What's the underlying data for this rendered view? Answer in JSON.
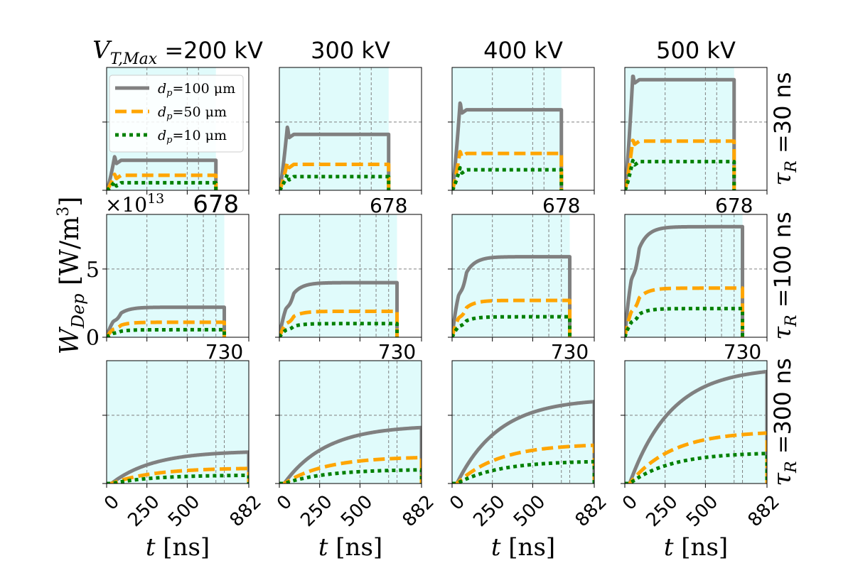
{
  "chart_data": {
    "type": "line",
    "layout": "3x4 grid of line subplots",
    "column_headers": [
      "200 kV",
      "300 kV",
      "400 kV",
      "500 kV"
    ],
    "column_header_prefix": "V",
    "column_header_prefix_sub": "T,Max",
    "column_header_prefix_sep": " =",
    "row_headers": [
      "30 ns",
      "100 ns",
      "300 ns"
    ],
    "row_header_symbol": "τ",
    "row_header_symbol_sub": "R",
    "row_header_sep": " =",
    "xlabel": "t [ns]",
    "ylabel_symbol": "W",
    "ylabel_sub": "Dep",
    "ylabel_units": "[W/m",
    "ylabel_units_sup": "3",
    "ylabel_units_close": "]",
    "y_scale_label": "×10",
    "y_scale_exp": "13",
    "xticks": [
      "0",
      "250",
      "500",
      "882"
    ],
    "xtick_values": [
      0,
      250,
      500,
      882
    ],
    "yticks_row2": [
      "0",
      "5"
    ],
    "ylim": [
      0,
      9
    ],
    "xlim": [
      0,
      882
    ],
    "grid": "dashed",
    "shaded_region_color": "#e0fbfb",
    "legend_position": "top-left of first subplot",
    "series_styles": [
      {
        "name": "d_p=100 μm",
        "label_symbol": "d",
        "label_sub": "p",
        "label_value": "=100 μm",
        "color": "#808080",
        "dash": "solid"
      },
      {
        "name": "d_p=50 μm",
        "label_symbol": "d",
        "label_sub": "p",
        "label_value": "=50 μm",
        "color": "#ffa500",
        "dash": "dashed"
      },
      {
        "name": "d_p=10 μm",
        "label_symbol": "d",
        "label_sub": "p",
        "label_value": "=10 μm",
        "color": "#008000",
        "dash": "dotted"
      }
    ],
    "rows": [
      {
        "tau_R": "30 ns",
        "end_label": "678",
        "end_time": 678,
        "extra_vlines": [
          570
        ],
        "panels": [
          {
            "V": "200 kV",
            "plateau": [
              2.2,
              1.1,
              0.55
            ],
            "overshoot": 0.3
          },
          {
            "V": "300 kV",
            "plateau": [
              4.1,
              1.9,
              1.0
            ],
            "overshoot": 0.6
          },
          {
            "V": "400 kV",
            "plateau": [
              5.9,
              2.7,
              1.5
            ],
            "overshoot": 0.6
          },
          {
            "V": "500 kV",
            "plateau": [
              8.1,
              3.6,
              2.1
            ],
            "overshoot": 0.4
          }
        ]
      },
      {
        "tau_R": "100 ns",
        "end_label": "678",
        "end_time": 730,
        "extra_vlines": [
          600,
          678
        ],
        "panels": [
          {
            "V": "200 kV",
            "plateau": [
              2.2,
              1.1,
              0.55
            ],
            "overshoot": 0
          },
          {
            "V": "300 kV",
            "plateau": [
              4.0,
              1.9,
              1.0
            ],
            "overshoot": 0
          },
          {
            "V": "400 kV",
            "plateau": [
              5.9,
              2.7,
              1.5
            ],
            "overshoot": 0
          },
          {
            "V": "500 kV",
            "plateau": [
              8.1,
              3.6,
              2.1
            ],
            "overshoot": 0
          }
        ]
      },
      {
        "tau_R": "300 ns",
        "end_label": "730",
        "end_time": 882,
        "extra_vlines": [
          678,
          730
        ],
        "panels": [
          {
            "V": "200 kV",
            "plateau": [
              2.3,
              1.1,
              0.6
            ],
            "overshoot": 0
          },
          {
            "V": "300 kV",
            "plateau": [
              4.1,
              1.9,
              1.0
            ],
            "overshoot": 0
          },
          {
            "V": "400 kV",
            "plateau": [
              6.0,
              2.8,
              1.6
            ],
            "overshoot": 0
          },
          {
            "V": "500 kV",
            "plateau": [
              8.2,
              3.7,
              2.2
            ],
            "overshoot": 0
          }
        ]
      }
    ]
  }
}
